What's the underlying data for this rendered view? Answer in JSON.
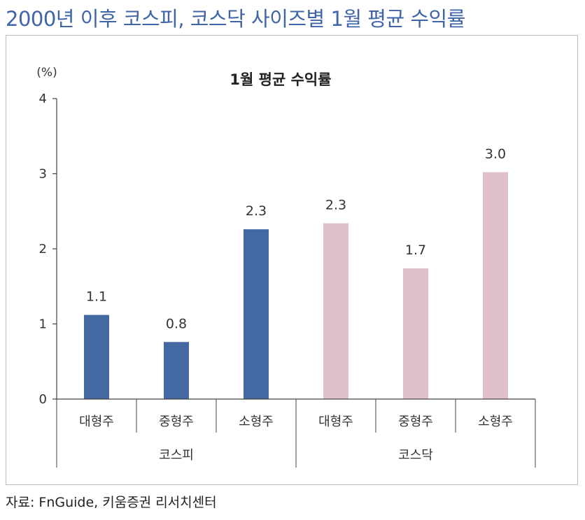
{
  "page_title": "2000년 이후 코스피, 코스닥 사이즈별 1월 평균 수익률",
  "source": "자료: FnGuide, 키움증권 리서치센터",
  "chart_data": {
    "type": "bar",
    "title": "1월 평균 수익률",
    "ylabel": "(%)",
    "ylim": [
      0,
      4
    ],
    "yticks": [
      "0",
      "1",
      "2",
      "3",
      "4"
    ],
    "categories": [
      "대형주",
      "중형주",
      "소형주",
      "대형주",
      "중형주",
      "소형주"
    ],
    "groups": [
      {
        "name": "코스피",
        "color": "#4468a2",
        "start": 0,
        "count": 3
      },
      {
        "name": "코스닥",
        "color": "#dfbfcb",
        "start": 3,
        "count": 3
      }
    ],
    "values": [
      1.12,
      0.76,
      2.26,
      2.34,
      1.74,
      3.02
    ],
    "value_labels": [
      "1.1",
      "0.8",
      "2.3",
      "2.3",
      "1.7",
      "3.0"
    ],
    "grid": false,
    "legend": "none"
  }
}
